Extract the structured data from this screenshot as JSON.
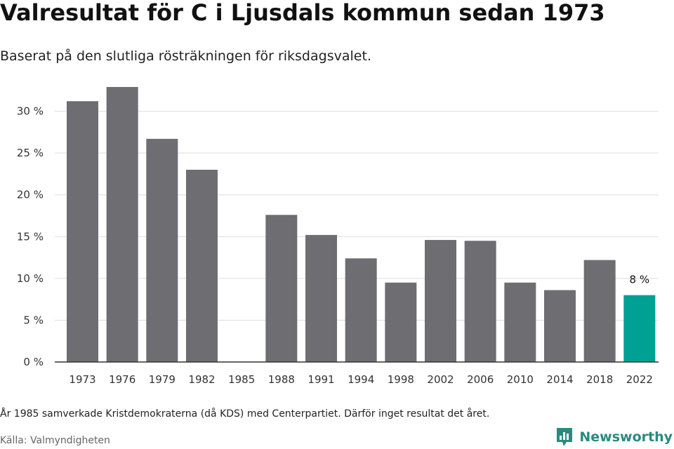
{
  "title": "Valresultat för C i Ljusdals kommun sedan 1973",
  "subtitle": "Baserat på den slutliga rösträkningen för riksdagsvalet.",
  "note": "År 1985 samverkade Kristdemokraterna (då KDS) med Centerpartiet. Därför inget resultat det året.",
  "source": "Källa: Valmyndigheten",
  "brand": {
    "name": "Newsworthy",
    "icon": "newsworthy-logo-icon"
  },
  "colors": {
    "bar": "#6e6d72",
    "highlight": "#00a195",
    "grid": "#dddddd",
    "axis": "#333333",
    "brand": "#2a8a80"
  },
  "chart_data": {
    "type": "bar",
    "categories": [
      "1973",
      "1976",
      "1979",
      "1982",
      "1985",
      "1988",
      "1991",
      "1994",
      "1998",
      "2002",
      "2006",
      "2010",
      "2014",
      "2018",
      "2022"
    ],
    "values": [
      31.2,
      32.9,
      26.7,
      23.0,
      null,
      17.6,
      15.2,
      12.4,
      9.5,
      14.6,
      14.5,
      9.5,
      8.6,
      12.2,
      8.0
    ],
    "highlight_index": 14,
    "data_labels": [
      {
        "index": 14,
        "text": "8 %"
      }
    ],
    "yticks": [
      "0 %",
      "5 %",
      "10 %",
      "15 %",
      "20 %",
      "25 %",
      "30 %"
    ],
    "ytick_values": [
      0,
      5,
      10,
      15,
      20,
      25,
      30
    ],
    "ylim": [
      0,
      33.5
    ],
    "grid": true,
    "legend": "none"
  }
}
